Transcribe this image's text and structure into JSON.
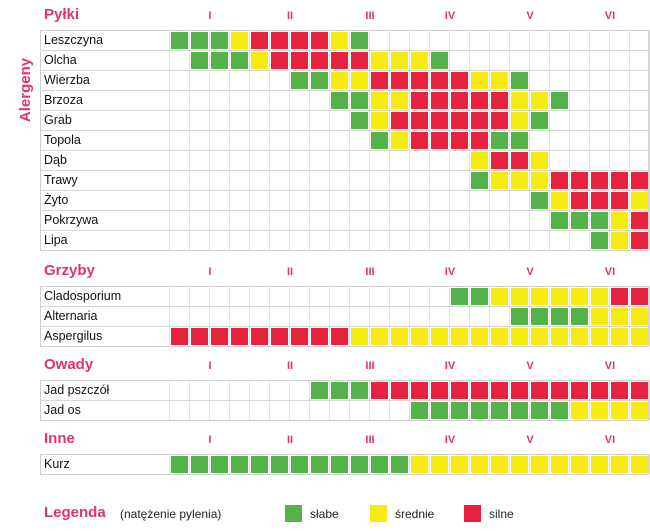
{
  "side_label": "Alergeny",
  "months": [
    "I",
    "II",
    "III",
    "IV",
    "V",
    "VI"
  ],
  "legend": {
    "title": "Legenda",
    "subtitle": "(natężenie pylenia)",
    "items": [
      {
        "key": "g",
        "label": "słabe",
        "color": "#53b248"
      },
      {
        "key": "y",
        "label": "średnie",
        "color": "#f7ec12"
      },
      {
        "key": "r",
        "label": "silne",
        "color": "#e7223f"
      }
    ]
  },
  "colors": {
    "accent": "#e2336b",
    "g": "#53b248",
    "y": "#f7ec12",
    "r": "#e7223f"
  },
  "chart_data": {
    "type": "heatmap",
    "title": "",
    "x_categories": [
      "I",
      "I",
      "I",
      "I",
      "II",
      "II",
      "II",
      "II",
      "III",
      "III",
      "III",
      "III",
      "IV",
      "IV",
      "IV",
      "IV",
      "V",
      "V",
      "V",
      "V",
      "VI",
      "VI",
      "VI",
      "VI"
    ],
    "sections": [
      {
        "title": "Pyłki",
        "rows": [
          {
            "name": "Leszczyna",
            "cells": "gggyrrrryg--------------"
          },
          {
            "name": "Olcha",
            "cells": "-gggyrrrrryyyg----------"
          },
          {
            "name": "Wierzba",
            "cells": "------ggyyrrrrryyg------"
          },
          {
            "name": "Brzoza",
            "cells": "--------ggyyrrrrryyg----"
          },
          {
            "name": "Grab",
            "cells": "---------gyrrrrrryg-----"
          },
          {
            "name": "Topola",
            "cells": "----------gyrrrrgg------"
          },
          {
            "name": "Dąb",
            "cells": "---------------yrry-----"
          },
          {
            "name": "Trawy",
            "cells": "---------------gyyyrrrrr"
          },
          {
            "name": "Żyto",
            "cells": "------------------gyrrry"
          },
          {
            "name": "Pokrzywa",
            "cells": "-------------------gggyr"
          },
          {
            "name": "Lipa",
            "cells": "---------------------gyr"
          }
        ]
      },
      {
        "title": "Grzyby",
        "rows": [
          {
            "name": "Cladosporium",
            "cells": "--------------ggyyyyyyrr"
          },
          {
            "name": "Alternaria",
            "cells": "-----------------ggggyyy"
          },
          {
            "name": "Aspergilus",
            "cells": "rrrrrrrrryyyyyyyyyyyyyyy"
          }
        ]
      },
      {
        "title": "Owady",
        "rows": [
          {
            "name": "Jad pszczół",
            "cells": "-------gggrrrrrrrrrrrrrr"
          },
          {
            "name": "Jad os",
            "cells": "------------ggggggggyyyy"
          }
        ]
      },
      {
        "title": "Inne",
        "rows": [
          {
            "name": "Kurz",
            "cells": "ggggggggggggyyyyyyyyyyyy"
          }
        ]
      }
    ]
  }
}
